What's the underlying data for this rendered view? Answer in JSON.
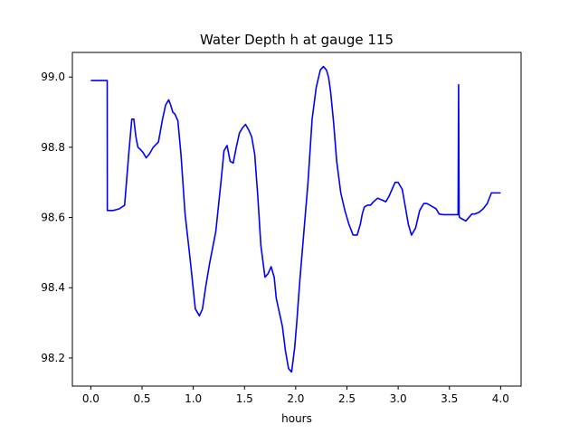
{
  "chart_data": {
    "type": "line",
    "title": "Water Depth h at gauge 115",
    "xlabel": "hours",
    "ylabel": "",
    "xlim": [
      -0.18,
      4.2
    ],
    "ylim": [
      98.12,
      99.07
    ],
    "xticks": [
      0.0,
      0.5,
      1.0,
      1.5,
      2.0,
      2.5,
      3.0,
      3.5,
      4.0
    ],
    "xtick_labels": [
      "0.0",
      "0.5",
      "1.0",
      "1.5",
      "2.0",
      "2.5",
      "3.0",
      "3.5",
      "4.0"
    ],
    "yticks": [
      98.2,
      98.4,
      98.6,
      98.8,
      99.0
    ],
    "ytick_labels": [
      "98.2",
      "98.4",
      "98.6",
      "98.8",
      "99.0"
    ],
    "grid": false,
    "series": [
      {
        "color": "#0000ff",
        "x": [
          0.0,
          0.08,
          0.16,
          0.161,
          0.22,
          0.28,
          0.33,
          0.37,
          0.4,
          0.42,
          0.44,
          0.46,
          0.48,
          0.51,
          0.54,
          0.57,
          0.61,
          0.66,
          0.7,
          0.73,
          0.76,
          0.78,
          0.8,
          0.82,
          0.85,
          0.88,
          0.92,
          0.97,
          1.02,
          1.06,
          1.09,
          1.12,
          1.16,
          1.22,
          1.27,
          1.3,
          1.33,
          1.36,
          1.39,
          1.42,
          1.45,
          1.48,
          1.51,
          1.54,
          1.57,
          1.6,
          1.63,
          1.66,
          1.7,
          1.73,
          1.76,
          1.79,
          1.81,
          1.84,
          1.87,
          1.9,
          1.93,
          1.96,
          1.99,
          2.01,
          2.04,
          2.08,
          2.12,
          2.16,
          2.2,
          2.24,
          2.27,
          2.3,
          2.32,
          2.34,
          2.37,
          2.4,
          2.44,
          2.48,
          2.52,
          2.56,
          2.6,
          2.63,
          2.65,
          2.67,
          2.7,
          2.73,
          2.76,
          2.8,
          2.84,
          2.88,
          2.91,
          2.94,
          2.97,
          3.0,
          3.04,
          3.07,
          3.1,
          3.13,
          3.17,
          3.21,
          3.25,
          3.28,
          3.31,
          3.34,
          3.37,
          3.4,
          3.44,
          3.48,
          3.52,
          3.56,
          3.585,
          3.59,
          3.595,
          3.6,
          3.63,
          3.66,
          3.69,
          3.72,
          3.75,
          3.79,
          3.83,
          3.87,
          3.91,
          3.95,
          4.0
        ],
        "y": [
          98.99,
          98.99,
          98.99,
          98.62,
          98.62,
          98.625,
          98.635,
          98.78,
          98.88,
          98.88,
          98.83,
          98.8,
          98.795,
          98.785,
          98.77,
          98.78,
          98.8,
          98.815,
          98.88,
          98.92,
          98.935,
          98.92,
          98.9,
          98.895,
          98.875,
          98.78,
          98.61,
          98.48,
          98.34,
          98.32,
          98.34,
          98.4,
          98.47,
          98.56,
          98.7,
          98.79,
          98.805,
          98.76,
          98.755,
          98.8,
          98.84,
          98.855,
          98.865,
          98.85,
          98.83,
          98.78,
          98.66,
          98.52,
          98.43,
          98.44,
          98.46,
          98.43,
          98.37,
          98.33,
          98.29,
          98.22,
          98.17,
          98.16,
          98.23,
          98.3,
          98.42,
          98.56,
          98.7,
          98.88,
          98.97,
          99.02,
          99.03,
          99.02,
          99.0,
          98.96,
          98.87,
          98.76,
          98.67,
          98.62,
          98.58,
          98.55,
          98.55,
          98.58,
          98.61,
          98.63,
          98.635,
          98.635,
          98.645,
          98.655,
          98.65,
          98.645,
          98.66,
          98.68,
          98.7,
          98.7,
          98.68,
          98.63,
          98.58,
          98.55,
          98.57,
          98.62,
          98.64,
          98.64,
          98.635,
          98.63,
          98.625,
          98.61,
          98.608,
          98.608,
          98.608,
          98.608,
          98.608,
          98.978,
          98.608,
          98.6,
          98.595,
          98.59,
          98.6,
          98.61,
          98.61,
          98.615,
          98.625,
          98.64,
          98.67,
          98.67,
          98.67
        ]
      }
    ]
  }
}
